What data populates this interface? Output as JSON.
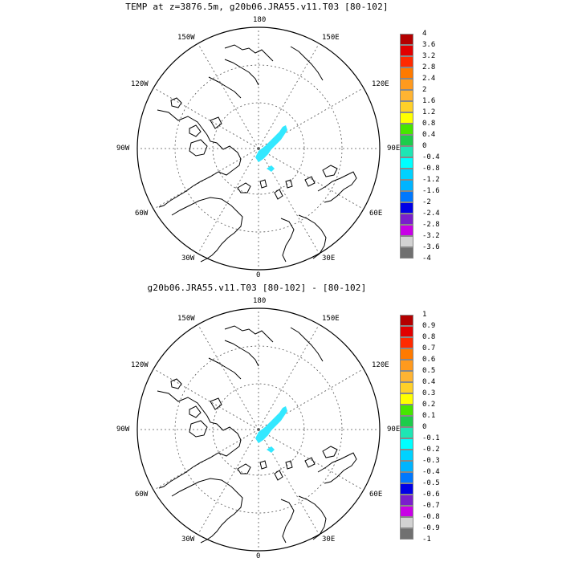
{
  "panels": [
    {
      "title": "TEMP at z=3876.5m, g20b06.JRA55.v11.T03 [80-102]",
      "longitude_labels": [
        "180",
        "150E",
        "120E",
        "90E",
        "60E",
        "30E",
        "0",
        "30W",
        "60W",
        "90W",
        "120W",
        "150W"
      ],
      "colorbar_ticks": [
        "4",
        "3.6",
        "3.2",
        "2.8",
        "2.4",
        "2",
        "1.6",
        "1.2",
        "0.8",
        "0.4",
        "0",
        "-0.4",
        "-0.8",
        "-1.2",
        "-1.6",
        "-2",
        "-2.4",
        "-2.8",
        "-3.2",
        "-3.6",
        "-4"
      ]
    },
    {
      "title": "g20b06.JRA55.v11.T03 [80-102] -  [80-102]",
      "longitude_labels": [
        "180",
        "150E",
        "120E",
        "90E",
        "60E",
        "30E",
        "0",
        "30W",
        "60W",
        "90W",
        "120W",
        "150W"
      ],
      "colorbar_ticks": [
        "1",
        "0.9",
        "0.8",
        "0.7",
        "0.6",
        "0.5",
        "0.4",
        "0.3",
        "0.2",
        "0.1",
        "0",
        "-0.1",
        "-0.2",
        "-0.3",
        "-0.4",
        "-0.5",
        "-0.6",
        "-0.7",
        "-0.8",
        "-0.9",
        "-1"
      ]
    }
  ],
  "colorbar_colors": [
    "#b40000",
    "#e10000",
    "#ff2a00",
    "#ff7a00",
    "#ff9a1e",
    "#ffb432",
    "#ffd028",
    "#ffff00",
    "#46e600",
    "#1ecc4b",
    "#1ee6b4",
    "#00ffff",
    "#00d2ff",
    "#00b4ff",
    "#0078ff",
    "#0000e6",
    "#7a1ecc",
    "#c800e6",
    "#d2d2d2",
    "#707070"
  ],
  "anomaly_color": "#33e8ff"
}
